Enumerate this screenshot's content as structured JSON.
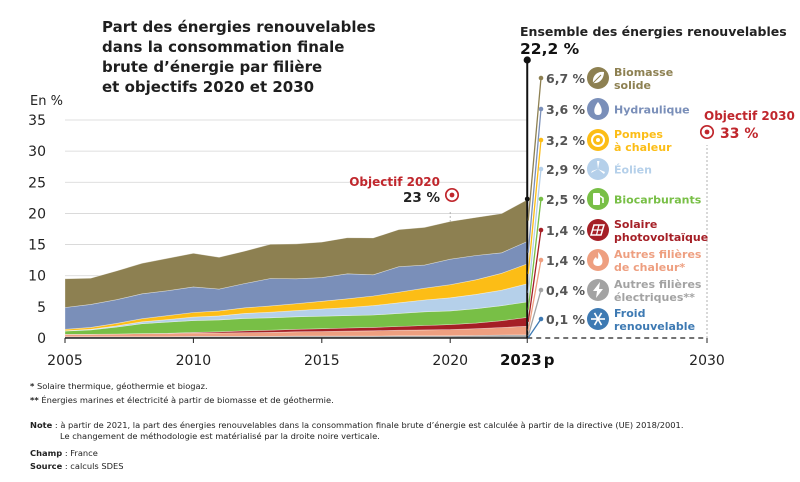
{
  "title_lines": [
    "Part des énergies renouvelables",
    "dans la consommation finale",
    "brute d’énergie par filière",
    "et objectifs 2020 et 2030"
  ],
  "colors": {
    "biomasse": "#8d8051",
    "hydraulique": "#7a8fb9",
    "pac": "#fcbd16",
    "eolien": "#b5d0ea",
    "biocarburants": "#78bf46",
    "solaire_pv": "#a51f26",
    "chaleur": "#ee9f80",
    "elec_autres": "#a3a3a3",
    "froid": "#3e7ab3",
    "objectif": "#c0272d",
    "axis": "#222222",
    "grid": "#d4d4d4"
  },
  "chart_data": {
    "type": "area",
    "stacked": true,
    "ylabel": "En %",
    "ylim": [
      0,
      35
    ],
    "yticks": [
      0,
      5,
      10,
      15,
      20,
      25,
      30,
      35
    ],
    "xlim": [
      2005,
      2030
    ],
    "xticks": [
      "2005",
      "2010",
      "2015",
      "2020",
      "2023",
      "2030"
    ],
    "last_year_label": "2023",
    "last_year_suffix": "p",
    "grid": true,
    "x": [
      2005,
      2006,
      2007,
      2008,
      2009,
      2010,
      2011,
      2012,
      2013,
      2014,
      2015,
      2016,
      2017,
      2018,
      2019,
      2020,
      2021,
      2022,
      2023
    ],
    "series": [
      {
        "key": "froid",
        "values": [
          0,
          0,
          0,
          0,
          0,
          0,
          0,
          0,
          0,
          0,
          0,
          0,
          0,
          0,
          0,
          0,
          0.05,
          0.08,
          0.1
        ]
      },
      {
        "key": "elec_autres",
        "values": [
          0.2,
          0.2,
          0.2,
          0.2,
          0.2,
          0.25,
          0.25,
          0.25,
          0.25,
          0.3,
          0.3,
          0.3,
          0.3,
          0.35,
          0.35,
          0.35,
          0.35,
          0.4,
          0.4
        ]
      },
      {
        "key": "chaleur",
        "values": [
          0.4,
          0.4,
          0.45,
          0.5,
          0.5,
          0.55,
          0.55,
          0.6,
          0.65,
          0.7,
          0.75,
          0.8,
          0.85,
          0.9,
          0.95,
          1.0,
          1.1,
          1.2,
          1.4
        ]
      },
      {
        "key": "solaire_pv",
        "values": [
          0,
          0,
          0,
          0,
          0.05,
          0.1,
          0.2,
          0.3,
          0.35,
          0.4,
          0.45,
          0.5,
          0.55,
          0.6,
          0.7,
          0.8,
          0.9,
          1.1,
          1.4
        ]
      },
      {
        "key": "biocarburants",
        "values": [
          0.5,
          0.7,
          1.1,
          1.6,
          1.8,
          1.9,
          1.9,
          2.0,
          2.0,
          2.0,
          2.0,
          2.0,
          2.0,
          2.1,
          2.2,
          2.2,
          2.3,
          2.4,
          2.5
        ]
      },
      {
        "key": "eolien",
        "values": [
          0.05,
          0.1,
          0.2,
          0.3,
          0.4,
          0.55,
          0.65,
          0.8,
          0.9,
          1.0,
          1.15,
          1.3,
          1.5,
          1.7,
          1.9,
          2.1,
          2.3,
          2.5,
          2.9
        ]
      },
      {
        "key": "pac",
        "values": [
          0.25,
          0.3,
          0.4,
          0.5,
          0.65,
          0.75,
          0.8,
          0.9,
          1.0,
          1.1,
          1.25,
          1.4,
          1.55,
          1.7,
          1.9,
          2.1,
          2.35,
          2.7,
          3.2
        ]
      },
      {
        "key": "hydraulique",
        "values": [
          3.5,
          3.7,
          3.8,
          4.0,
          4.0,
          4.1,
          3.5,
          3.9,
          4.4,
          4.0,
          3.8,
          4.0,
          3.4,
          4.1,
          3.7,
          4.1,
          3.9,
          3.3,
          3.6
        ]
      },
      {
        "key": "biomasse",
        "values": [
          4.6,
          4.2,
          4.6,
          4.9,
          5.2,
          5.4,
          5.1,
          5.2,
          5.5,
          5.6,
          5.7,
          5.8,
          5.9,
          5.95,
          6.05,
          6.05,
          6.1,
          6.3,
          6.7
        ]
      }
    ],
    "total_2023_label": "Ensemble des énergies renouvelables",
    "total_2023_value": "22,2 %",
    "objectives": [
      {
        "label": "Objectif 2020",
        "value": "23 %",
        "year": 2020,
        "target": 23
      },
      {
        "label": "Objectif 2030",
        "value": "33 %",
        "year": 2030,
        "target": 33
      }
    ],
    "legend": [
      {
        "key": "biomasse",
        "value": "6,7 %",
        "label": [
          "Biomasse",
          "solide"
        ],
        "icon": "leaf-icon"
      },
      {
        "key": "hydraulique",
        "value": "3,6 %",
        "label": [
          "Hydraulique"
        ],
        "icon": "water-drop-icon"
      },
      {
        "key": "pac",
        "value": "3,2 %",
        "label": [
          "Pompes",
          "à chaleur"
        ],
        "icon": "heat-pump-icon"
      },
      {
        "key": "eolien",
        "value": "2,9 %",
        "label": [
          "Éolien"
        ],
        "icon": "wind-turbine-icon"
      },
      {
        "key": "biocarburants",
        "value": "2,5 %",
        "label": [
          "Biocarburants"
        ],
        "icon": "fuel-pump-icon"
      },
      {
        "key": "solaire_pv",
        "value": "1,4 %",
        "label": [
          "Solaire",
          "photovoltaïque"
        ],
        "icon": "solar-panel-icon"
      },
      {
        "key": "chaleur",
        "value": "1,4 %",
        "label": [
          "Autres filières",
          "de chaleur*"
        ],
        "icon": "flame-icon"
      },
      {
        "key": "elec_autres",
        "value": "0,4 %",
        "label": [
          "Autres filières",
          "électriques**"
        ],
        "icon": "lightning-icon"
      },
      {
        "key": "froid",
        "value": "0,1 %",
        "label": [
          "Froid",
          "renouvelable"
        ],
        "icon": "snowflake-icon"
      }
    ]
  },
  "footnotes": {
    "star1": {
      "mark": "*",
      "text": "Solaire thermique, géothermie et biogaz."
    },
    "star2": {
      "mark": "**",
      "text": "Énergies marines et électricité à partir de biomasse et de géothermie."
    },
    "note": {
      "label": "Note",
      "line1": " : à partir de 2021, la part des énergies renouvelables dans la consommation finale brute d’énergie est calculée à partir de la directive (UE) 2018/2001.",
      "line2": "Le changement de méthodologie est matérialisé par la droite noire verticale."
    },
    "champ": {
      "label": "Champ",
      "text": " : France"
    },
    "source": {
      "label": "Source",
      "text": " : calculs SDES"
    }
  }
}
